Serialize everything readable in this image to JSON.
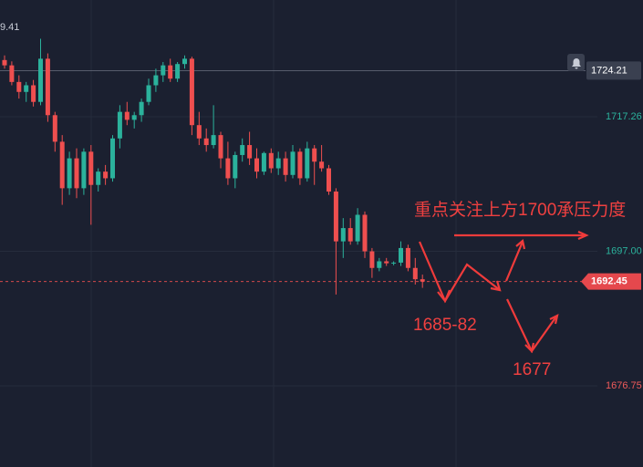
{
  "chart_data": {
    "type": "candlestick",
    "top_label": "9.41",
    "open": [
      1725.8,
      1725.0,
      1722.5,
      1721.0,
      1722.0,
      1719.5,
      1726.0,
      1717.5,
      1713.5,
      1706.5,
      1711.0,
      1706.5,
      1712.0,
      1707.0,
      1709.0,
      1708.0,
      1714.0,
      1718.0,
      1716.8,
      1717.5,
      1719.5,
      1722.0,
      1723.5,
      1725.0,
      1723.0,
      1725.2,
      1726.0,
      1716.0,
      1714.0,
      1713.0,
      1714.5,
      1711.0,
      1708.0,
      1711.5,
      1713.0,
      1711.0,
      1709.0,
      1711.8,
      1709.5,
      1711.0,
      1708.5,
      1712.0,
      1708.0,
      1712.5,
      1710.5,
      1709.5,
      1706.0,
      1698.5,
      1700.5,
      1698.5,
      1702.5,
      1697.0,
      1694.5,
      1695.5,
      1695.2,
      1695.3,
      1697.5,
      1694.5,
      1692.8
    ],
    "high": [
      1726.5,
      1725.6,
      1723.5,
      1722.5,
      1722.8,
      1729.0,
      1726.8,
      1718.0,
      1714.5,
      1712.0,
      1712.5,
      1712.5,
      1713.0,
      1709.5,
      1710.0,
      1714.5,
      1719.0,
      1719.5,
      1718.0,
      1720.0,
      1723.0,
      1724.5,
      1725.5,
      1726.0,
      1725.5,
      1726.5,
      1726.3,
      1718.0,
      1715.5,
      1719.0,
      1715.0,
      1713.5,
      1712.0,
      1714.0,
      1715.0,
      1712.5,
      1712.0,
      1712.5,
      1712.0,
      1712.0,
      1713.0,
      1712.5,
      1713.5,
      1713.0,
      1713.0,
      1710.0,
      1706.5,
      1702.0,
      1702.0,
      1703.5,
      1703.0,
      1697.5,
      1696.0,
      1696.0,
      1695.5,
      1698.5,
      1698.0,
      1696.0,
      1693.5
    ],
    "low": [
      1724.5,
      1722.0,
      1720.0,
      1719.5,
      1718.8,
      1719.0,
      1716.5,
      1712.0,
      1704.0,
      1705.5,
      1705.0,
      1705.5,
      1701.0,
      1706.0,
      1707.0,
      1707.5,
      1712.5,
      1716.0,
      1715.5,
      1716.5,
      1719.0,
      1721.0,
      1722.5,
      1722.5,
      1722.5,
      1724.5,
      1714.5,
      1713.0,
      1712.0,
      1712.5,
      1709.5,
      1707.0,
      1706.5,
      1710.5,
      1710.0,
      1708.0,
      1708.5,
      1708.8,
      1708.5,
      1707.5,
      1708.0,
      1707.0,
      1707.5,
      1707.0,
      1709.0,
      1705.5,
      1690.5,
      1696.0,
      1698.0,
      1698.0,
      1696.0,
      1693.0,
      1694.0,
      1694.8,
      1694.9,
      1694.8,
      1694.0,
      1692.0,
      1691.5
    ],
    "close": [
      1725.0,
      1722.5,
      1721.0,
      1722.0,
      1719.5,
      1726.0,
      1717.5,
      1713.5,
      1706.5,
      1711.0,
      1706.5,
      1712.0,
      1707.0,
      1709.0,
      1708.0,
      1714.0,
      1718.0,
      1716.8,
      1717.5,
      1719.5,
      1722.0,
      1723.5,
      1725.0,
      1723.0,
      1725.2,
      1726.0,
      1716.0,
      1714.0,
      1713.0,
      1714.5,
      1711.0,
      1708.0,
      1711.5,
      1713.0,
      1711.0,
      1709.0,
      1711.8,
      1709.5,
      1711.0,
      1708.5,
      1712.0,
      1708.0,
      1712.5,
      1710.5,
      1709.5,
      1706.0,
      1698.5,
      1700.5,
      1698.5,
      1702.5,
      1697.0,
      1694.5,
      1695.5,
      1695.2,
      1695.3,
      1697.5,
      1694.5,
      1692.8,
      1692.45
    ],
    "up_color": "#2bb29c",
    "down_color": "#ef4f4f",
    "ylim": [
      1664.53,
      1734.84
    ],
    "yticks": [
      1717.26,
      {
        "value": 1697,
        "label": "1697.00"
      },
      1676.75
    ],
    "grid": true,
    "last_price": 1692.45,
    "crosshair_price": 1724.21,
    "annotations": [
      "重点关注上方1700承压力度",
      "1685-82",
      "1677"
    ]
  }
}
